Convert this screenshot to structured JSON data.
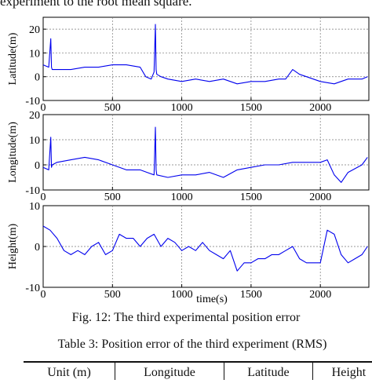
{
  "top_text": "experiment to the root mean square.",
  "figure": {
    "caption": "Fig. 12: The third experimental position error",
    "xlabel": "time(s)"
  },
  "chart_data": [
    {
      "type": "line",
      "ylabel": "Latitude(m)",
      "xlim": [
        0,
        2350
      ],
      "ylim": [
        -10,
        25
      ],
      "yticks": [
        -10,
        0,
        10,
        20
      ],
      "xticks": [
        0,
        500,
        1000,
        1500,
        2000
      ],
      "grid": true,
      "color": "#0000ee",
      "x": [
        0,
        40,
        55,
        60,
        65,
        100,
        200,
        300,
        400,
        500,
        600,
        700,
        740,
        780,
        800,
        810,
        815,
        820,
        850,
        900,
        1000,
        1100,
        1200,
        1300,
        1400,
        1500,
        1600,
        1700,
        1750,
        1800,
        1850,
        1900,
        2000,
        2100,
        2200,
        2300,
        2340
      ],
      "values": [
        5,
        4,
        16,
        4,
        3,
        3,
        3,
        4,
        4,
        5,
        5,
        4,
        0,
        -1,
        2,
        22,
        3,
        1,
        0,
        -1,
        -2,
        -1,
        -2,
        -1,
        -3,
        -2,
        -2,
        -1,
        -1,
        3,
        1,
        0,
        -2,
        -3,
        -1,
        -1,
        0
      ]
    },
    {
      "type": "line",
      "ylabel": "Longitude(m)",
      "xlim": [
        0,
        2350
      ],
      "ylim": [
        -10,
        20
      ],
      "yticks": [
        -10,
        0,
        10,
        20
      ],
      "xticks": [
        0,
        500,
        1000,
        1500,
        2000
      ],
      "grid": true,
      "color": "#0000ee",
      "x": [
        0,
        40,
        55,
        60,
        65,
        100,
        200,
        300,
        400,
        500,
        600,
        700,
        750,
        800,
        810,
        815,
        820,
        900,
        1000,
        1100,
        1200,
        1300,
        1400,
        1500,
        1600,
        1700,
        1800,
        1900,
        2000,
        2050,
        2100,
        2150,
        2200,
        2300,
        2340
      ],
      "values": [
        -1,
        -2,
        11,
        -1,
        0,
        1,
        2,
        3,
        2,
        0,
        -2,
        -2,
        -3,
        -4,
        15,
        -2,
        -4,
        -5,
        -4,
        -4,
        -3,
        -5,
        -2,
        -1,
        0,
        0,
        1,
        1,
        1,
        2,
        -4,
        -7,
        -3,
        0,
        3
      ]
    },
    {
      "type": "line",
      "ylabel": "Height(m)",
      "xlim": [
        0,
        2350
      ],
      "ylim": [
        -10,
        10
      ],
      "yticks": [
        -10,
        0,
        10
      ],
      "xticks": [
        0,
        500,
        1000,
        1500,
        2000
      ],
      "grid": true,
      "color": "#0000ee",
      "x": [
        0,
        50,
        100,
        150,
        200,
        250,
        300,
        350,
        400,
        450,
        500,
        550,
        600,
        650,
        700,
        750,
        800,
        850,
        900,
        950,
        1000,
        1050,
        1100,
        1150,
        1200,
        1250,
        1300,
        1350,
        1400,
        1450,
        1500,
        1550,
        1600,
        1650,
        1700,
        1750,
        1800,
        1850,
        1900,
        1950,
        2000,
        2050,
        2100,
        2150,
        2200,
        2250,
        2300,
        2340
      ],
      "values": [
        5,
        4,
        2,
        -1,
        -2,
        -1,
        -2,
        0,
        1,
        -2,
        -1,
        3,
        2,
        2,
        0,
        2,
        3,
        0,
        2,
        1,
        -1,
        0,
        -1,
        1,
        -1,
        -2,
        -3,
        -1,
        -6,
        -4,
        -4,
        -3,
        -3,
        -2,
        -2,
        -1,
        0,
        -3,
        -4,
        -4,
        -4,
        4,
        3,
        -2,
        -4,
        -3,
        -2,
        0
      ]
    }
  ],
  "table": {
    "caption": "Table 3: Position error of the third experiment (RMS)",
    "headers": [
      "Unit (m)",
      "Longitude",
      "Latitude",
      "Height"
    ]
  }
}
